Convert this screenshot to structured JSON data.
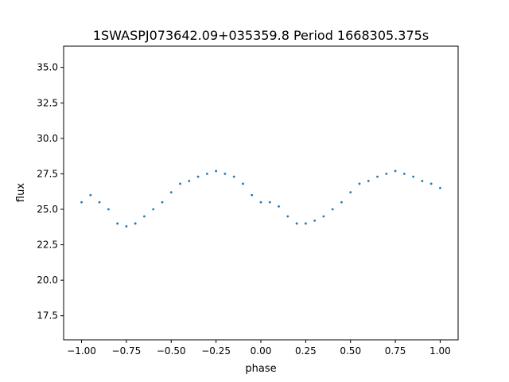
{
  "chart_data": {
    "type": "scatter",
    "title": "1SWASPJ073642.09+035359.8 Period 1668305.375s",
    "xlabel": "phase",
    "ylabel": "flux",
    "xlim": [
      -1.1,
      1.1
    ],
    "ylim": [
      15.8,
      36.5
    ],
    "xticks": [
      -1.0,
      -0.75,
      -0.5,
      -0.25,
      0.0,
      0.25,
      0.5,
      0.75,
      1.0
    ],
    "xtick_labels": [
      "−1.00",
      "−0.75",
      "−0.50",
      "−0.25",
      "0.00",
      "0.25",
      "0.50",
      "0.75",
      "1.00"
    ],
    "yticks": [
      17.5,
      20.0,
      22.5,
      25.0,
      27.5,
      30.0,
      32.5,
      35.0
    ],
    "ytick_labels": [
      "17.5",
      "20.0",
      "22.5",
      "25.0",
      "27.5",
      "30.0",
      "32.5",
      "35.0"
    ],
    "grid": false,
    "marker_color": "#1f77b4",
    "series": [
      {
        "x": [
          -1.0,
          -0.95,
          -0.9,
          -0.85,
          -0.8,
          -0.75,
          -0.7,
          -0.65,
          -0.6,
          -0.55,
          -0.5,
          -0.45,
          -0.4,
          -0.35,
          -0.3,
          -0.25,
          -0.2,
          -0.15,
          -0.1,
          -0.05,
          0.0,
          0.05,
          0.1,
          0.15,
          0.2,
          0.25,
          0.3,
          0.35,
          0.4,
          0.45,
          0.5,
          0.55,
          0.6,
          0.65,
          0.7,
          0.75,
          0.8,
          0.85,
          0.9,
          0.95,
          1.0
        ],
        "y": [
          25.5,
          26.0,
          25.5,
          25.0,
          24.0,
          23.8,
          24.0,
          24.5,
          25.0,
          25.5,
          26.2,
          26.8,
          27.0,
          27.3,
          27.5,
          27.7,
          27.5,
          27.3,
          26.8,
          26.0,
          25.5,
          25.5,
          25.2,
          24.5,
          24.0,
          24.0,
          24.2,
          24.5,
          25.0,
          25.5,
          26.2,
          26.8,
          27.0,
          27.3,
          27.5,
          27.7,
          27.5,
          27.3,
          27.0,
          26.8,
          26.5
        ]
      }
    ]
  }
}
